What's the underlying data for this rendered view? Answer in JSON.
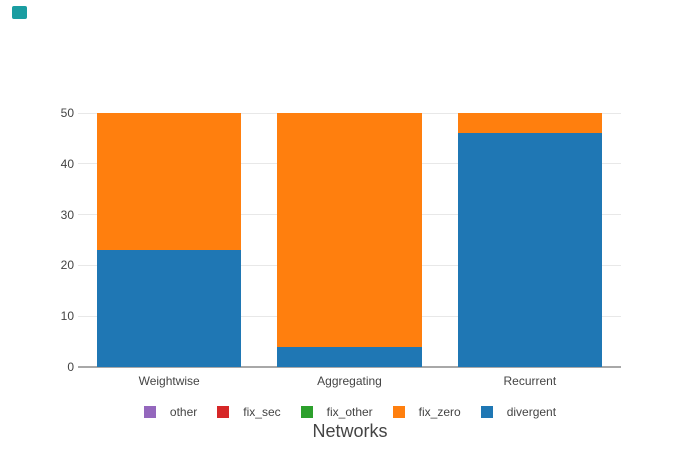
{
  "badge": {
    "color": "#1a9da1"
  },
  "chart_data": {
    "type": "bar",
    "stacked": true,
    "title": "Networks",
    "categories": [
      "Weightwise",
      "Aggregating",
      "Recurrent"
    ],
    "series": [
      {
        "name": "divergent",
        "color": "#1f77b4",
        "values": [
          23,
          4,
          46
        ]
      },
      {
        "name": "fix_zero",
        "color": "#ff7f0e",
        "values": [
          27,
          46,
          4
        ]
      },
      {
        "name": "fix_other",
        "color": "#2ca02c",
        "values": [
          0,
          0,
          0
        ]
      },
      {
        "name": "fix_sec",
        "color": "#d62728",
        "values": [
          0,
          0,
          0
        ]
      },
      {
        "name": "other",
        "color": "#9467bd",
        "values": [
          0,
          0,
          0
        ]
      }
    ],
    "legend_order": [
      "other",
      "fix_sec",
      "fix_other",
      "fix_zero",
      "divergent"
    ],
    "yticks": [
      0,
      10,
      20,
      30,
      40,
      50
    ],
    "ylim": [
      0,
      50
    ],
    "grid": true,
    "legend_position": "bottom",
    "colors": {
      "gridline": "#e8e8e8",
      "axisline": "#a8a8a8",
      "tick_text": "#444444",
      "title_text": "#444444"
    }
  }
}
